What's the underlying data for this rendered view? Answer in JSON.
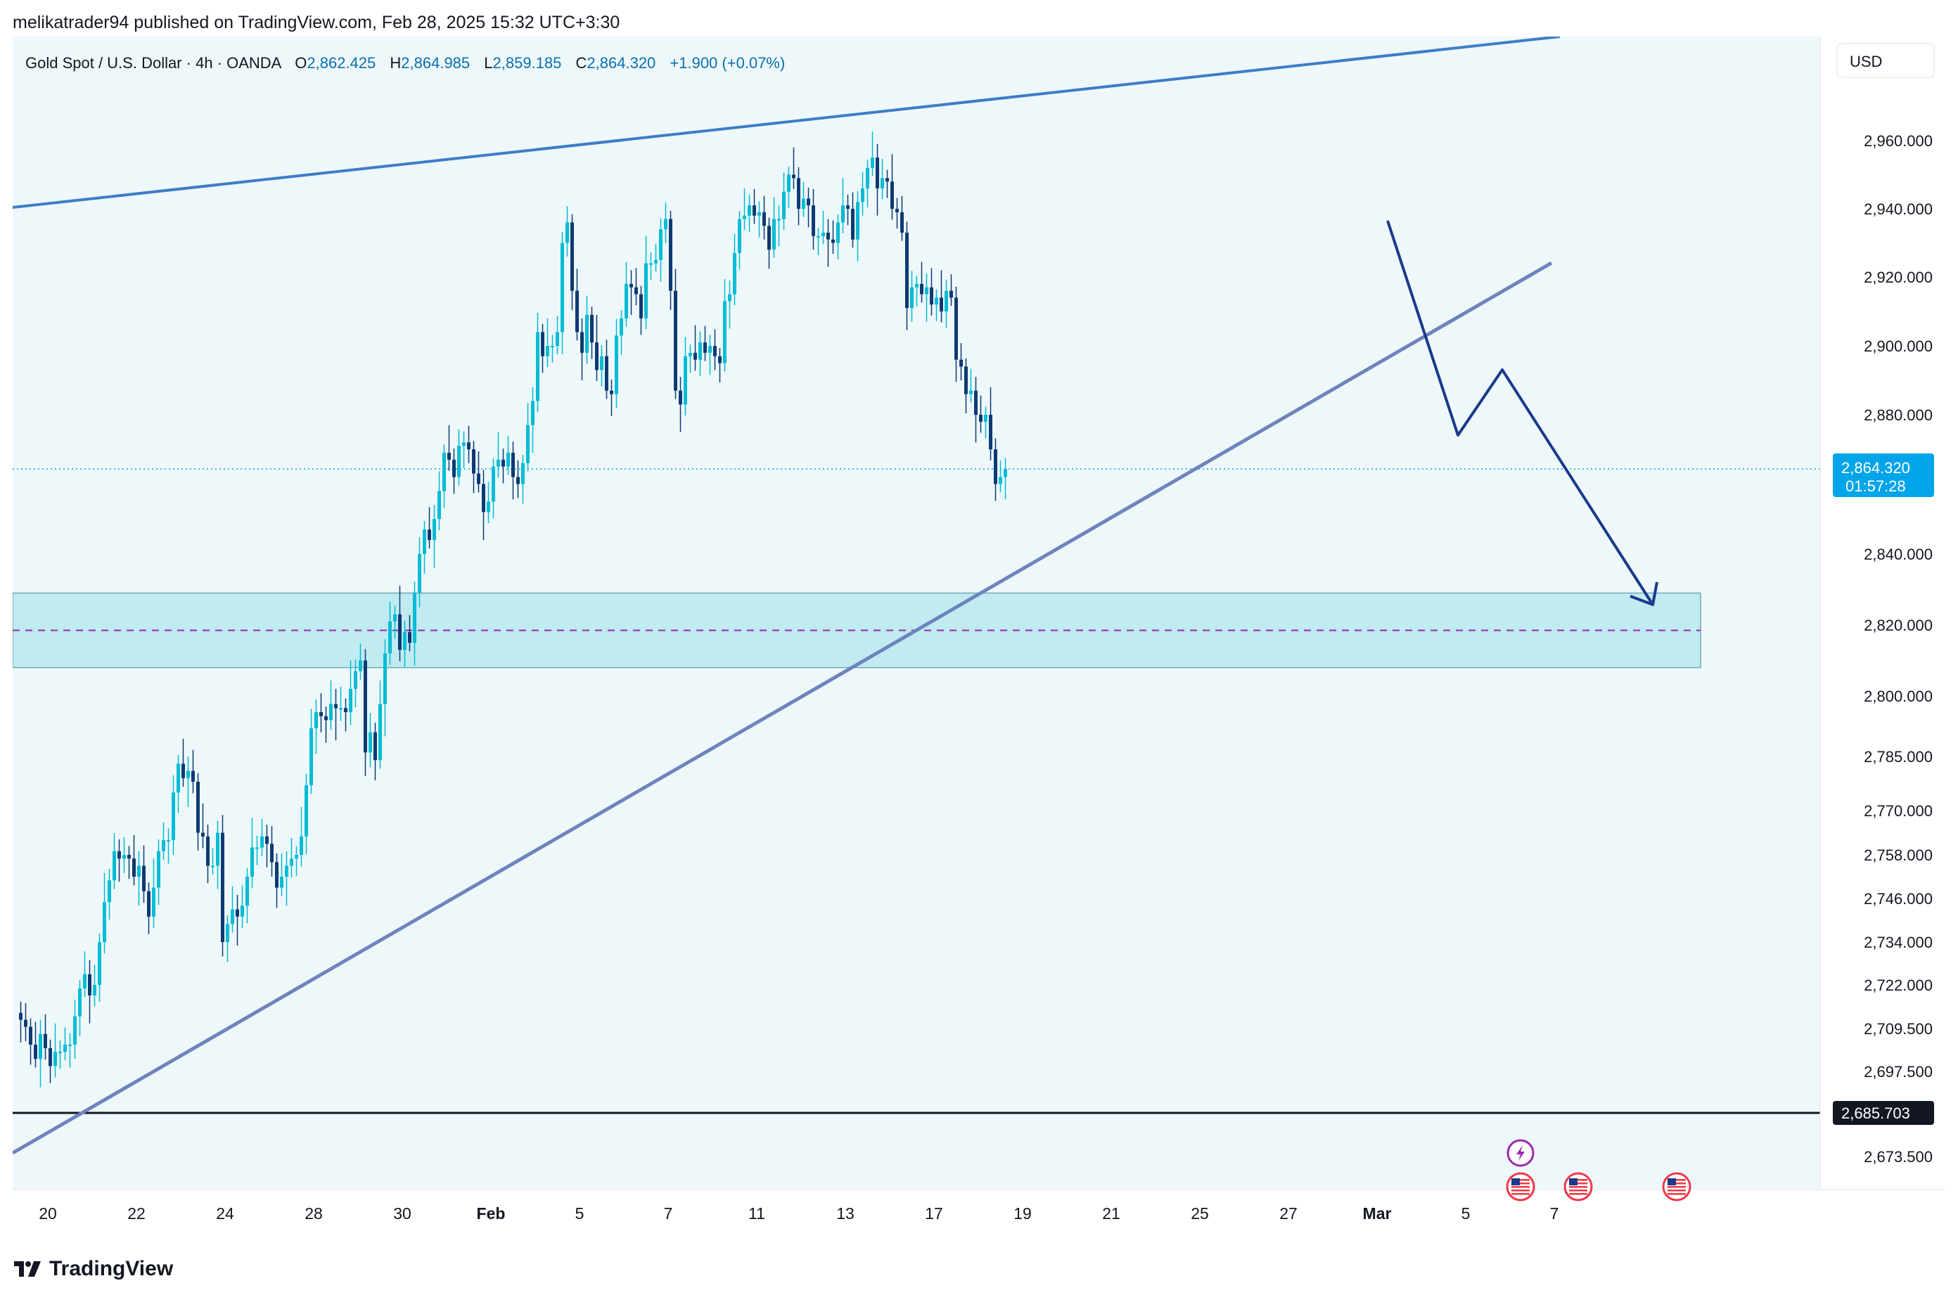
{
  "publisher": {
    "text": "melikatrader94 published on TradingView.com, Feb 28, 2025 15:32 UTC+3:30"
  },
  "legend": {
    "symbol": "Gold Spot / U.S. Dollar · 4h · OANDA",
    "o_label": "O",
    "o_value": "2,862.425",
    "h_label": "H",
    "h_value": "2,864.985",
    "l_label": "L",
    "l_value": "2,859.185",
    "c_label": "C",
    "c_value": "2,864.320",
    "change": "+1.900 (+0.07%)"
  },
  "currency_button": "USD",
  "price_badge": {
    "price": "2,864.320",
    "countdown": "01:57:28"
  },
  "level_badge": "2,685.703",
  "brand": "TradingView",
  "colors": {
    "background": "#ffffff",
    "plot_bg": "#eef8fa",
    "bull": "#00bcd4",
    "bear": "#0d3a73",
    "zone_fill": "#bfebf1",
    "zone_mid": "#9c27b0",
    "channel_line": "#3d7dc6",
    "trend_line": "#6d84bd",
    "projection": "#1a3a8a",
    "price_badge": "#00a4e8",
    "level_line": "#131722",
    "axis_text": "#131722"
  },
  "chart_data": {
    "type": "candlestick",
    "symbol": "Gold Spot / U.S. Dollar",
    "timeframe": "4h",
    "ylim": [
      2668,
      2976
    ],
    "y_ticks": [
      {
        "label": "2,960.000",
        "value": 2960
      },
      {
        "label": "2,940.000",
        "value": 2940
      },
      {
        "label": "2,920.000",
        "value": 2920
      },
      {
        "label": "2,900.000",
        "value": 2900
      },
      {
        "label": "2,880.000",
        "value": 2880
      },
      {
        "label": "2,840.000",
        "value": 2840
      },
      {
        "label": "2,820.000",
        "value": 2820
      },
      {
        "label": "2,800.000",
        "value": 2800
      },
      {
        "label": "2,785.000",
        "value": 2785
      },
      {
        "label": "2,770.000",
        "value": 2770
      },
      {
        "label": "2,758.000",
        "value": 2758
      },
      {
        "label": "2,746.000",
        "value": 2746
      },
      {
        "label": "2,734.000",
        "value": 2734
      },
      {
        "label": "2,722.000",
        "value": 2722
      },
      {
        "label": "2,709.500",
        "value": 2709.5
      },
      {
        "label": "2,697.500",
        "value": 2697.5
      },
      {
        "label": "2,673.500",
        "value": 2673.5
      }
    ],
    "x_ticks": [
      "20",
      "22",
      "24",
      "28",
      "30",
      "Feb",
      "5",
      "7",
      "11",
      "13",
      "17",
      "19",
      "21",
      "25",
      "27",
      "Mar",
      "5",
      "7"
    ],
    "x_tick_bars": [
      6,
      24,
      42,
      60,
      78,
      96,
      114,
      132,
      150,
      168,
      186,
      204,
      222,
      240,
      258,
      276,
      294,
      312
    ],
    "closes": [
      2712,
      2710,
      2705,
      2701,
      2708,
      2704,
      2699,
      2703,
      2703,
      2705,
      2705,
      2713,
      2721,
      2725,
      2719,
      2722,
      2734,
      2745,
      2751,
      2759,
      2757,
      2758,
      2757,
      2752,
      2755,
      2748,
      2741,
      2749,
      2759,
      2762,
      2762,
      2775,
      2783,
      2779,
      2781,
      2778,
      2764,
      2763,
      2755,
      2755,
      2764,
      2734,
      2739,
      2743,
      2741,
      2744,
      2752,
      2760,
      2760,
      2763,
      2761,
      2756,
      2749,
      2752,
      2755,
      2757,
      2758,
      2763,
      2777,
      2792,
      2796,
      2795,
      2794,
      2798,
      2797,
      2797,
      2796,
      2802,
      2807,
      2810,
      2786,
      2791,
      2784,
      2798,
      2812,
      2821,
      2823,
      2813,
      2818,
      2815,
      2829,
      2840,
      2847,
      2844,
      2850,
      2858,
      2869,
      2867,
      2862,
      2871,
      2872,
      2870,
      2863,
      2860,
      2852,
      2855,
      2865,
      2867,
      2865,
      2869,
      2862,
      2860,
      2866,
      2877,
      2884,
      2904,
      2897,
      2900,
      2900,
      2904,
      2930,
      2936,
      2916,
      2904,
      2898,
      2909,
      2901,
      2893,
      2897,
      2887,
      2886,
      2903,
      2908,
      2918,
      2917,
      2915,
      2908,
      2924,
      2924,
      2925,
      2934,
      2937,
      2916,
      2887,
      2883,
      2897,
      2898,
      2896,
      2901,
      2898,
      2900,
      2897,
      2895,
      2913,
      2915,
      2927,
      2937,
      2938,
      2941,
      2938,
      2939,
      2935,
      2928,
      2937,
      2937,
      2945,
      2950,
      2949,
      2940,
      2943,
      2941,
      2932,
      2932,
      2933,
      2931,
      2930,
      2936,
      2941,
      2940,
      2931,
      2942,
      2946,
      2952,
      2955,
      2946,
      2949,
      2948,
      2940,
      2939,
      2933,
      2911,
      2917,
      2918,
      2915,
      2917,
      2912,
      2914,
      2910,
      2916,
      2914,
      2896,
      2894,
      2886,
      2887,
      2880,
      2878,
      2880,
      2870,
      2860,
      2862,
      2864.32
    ]
  },
  "events": [
    {
      "icon": "lightning-icon"
    },
    {
      "icon": "us-flag-icon"
    },
    {
      "icon": "us-flag-icon"
    },
    {
      "icon": "us-flag-icon"
    }
  ]
}
